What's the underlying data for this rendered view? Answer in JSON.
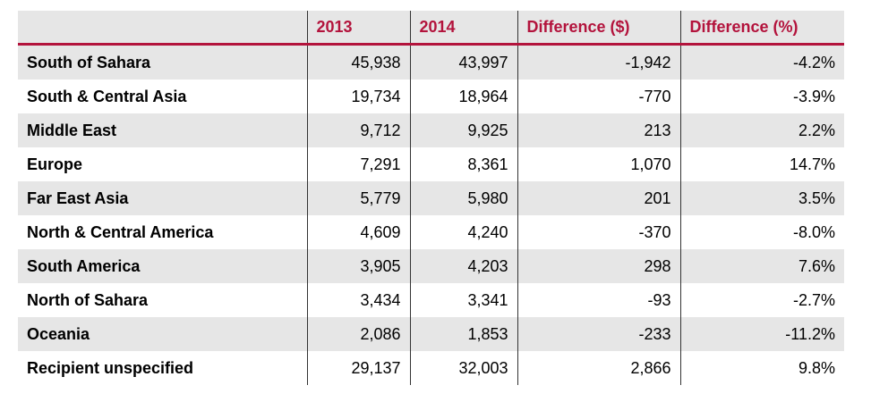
{
  "table": {
    "headers": [
      "",
      "2013",
      "2014",
      "Difference ($)",
      "Difference (%)"
    ],
    "rows": [
      {
        "region": "South of Sahara",
        "y2013": "45,938",
        "y2014": "43,997",
        "diff": "-1,942",
        "pct": "-4.2%"
      },
      {
        "region": "South & Central Asia",
        "y2013": "19,734",
        "y2014": "18,964",
        "diff": "-770",
        "pct": "-3.9%"
      },
      {
        "region": "Middle East",
        "y2013": "9,712",
        "y2014": "9,925",
        "diff": "213",
        "pct": "2.2%"
      },
      {
        "region": "Europe",
        "y2013": "7,291",
        "y2014": "8,361",
        "diff": "1,070",
        "pct": "14.7%"
      },
      {
        "region": "Far East Asia",
        "y2013": "5,779",
        "y2014": "5,980",
        "diff": "201",
        "pct": "3.5%"
      },
      {
        "region": "North & Central America",
        "y2013": "4,609",
        "y2014": "4,240",
        "diff": "-370",
        "pct": "-8.0%"
      },
      {
        "region": "South America",
        "y2013": "3,905",
        "y2014": "4,203",
        "diff": "298",
        "pct": "7.6%"
      },
      {
        "region": "North of Sahara",
        "y2013": "3,434",
        "y2014": "3,341",
        "diff": "-93",
        "pct": "-2.7%"
      },
      {
        "region": "Oceania",
        "y2013": "2,086",
        "y2014": "1,853",
        "diff": "-233",
        "pct": "-11.2%"
      },
      {
        "region": "Recipient unspecified",
        "y2013": "29,137",
        "y2014": "32,003",
        "diff": "2,866",
        "pct": "9.8%"
      }
    ]
  },
  "colors": {
    "header_text": "#b3133c",
    "header_rule": "#b3133c",
    "row_band": "#e6e6e6"
  }
}
